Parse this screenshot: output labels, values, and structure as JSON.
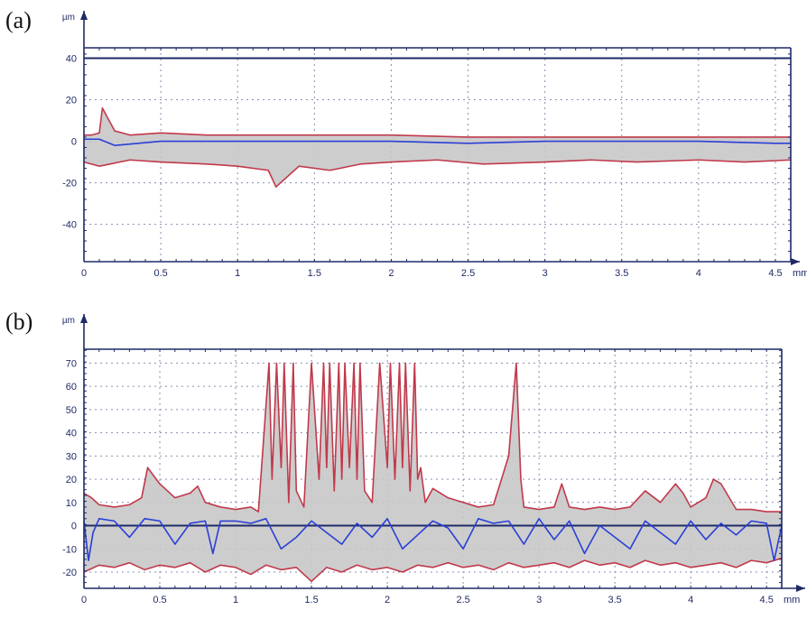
{
  "figure": {
    "panels": [
      {
        "label": "(a)",
        "y_unit": "µm",
        "x_unit": "mm"
      },
      {
        "label": "(b)",
        "y_unit": "µm",
        "x_unit": "mm"
      }
    ]
  },
  "chart_data": [
    {
      "type": "line",
      "panel": "(a)",
      "xlabel": "mm",
      "ylabel": "µm",
      "xlim": [
        0,
        4.6
      ],
      "ylim": [
        -58,
        45
      ],
      "x_ticks": [
        "0",
        "0.5",
        "1",
        "1.5",
        "2",
        "2.5",
        "3",
        "3.5",
        "4",
        "4.5"
      ],
      "x_tick_values": [
        0,
        0.5,
        1,
        1.5,
        2,
        2.5,
        3,
        3.5,
        4,
        4.5
      ],
      "y_ticks": [
        "40",
        "20",
        "0",
        "-20",
        "-40"
      ],
      "y_tick_values": [
        40,
        20,
        0,
        -20,
        -40
      ],
      "grid": true,
      "reference_line": {
        "y": 40
      },
      "colors": {
        "upper": "#c0394b",
        "lower": "#c0394b",
        "mean": "#2a3fd6",
        "band": "#c8c8c8",
        "axis": "#1f2a66",
        "grid": "#8a8fb0"
      },
      "series": [
        {
          "role": "upper",
          "x": [
            0,
            0.05,
            0.1,
            0.12,
            0.2,
            0.3,
            0.5,
            0.8,
            1,
            1.5,
            2,
            2.5,
            3,
            3.5,
            4,
            4.5,
            4.6
          ],
          "y": [
            3,
            3,
            4,
            16,
            5,
            3,
            4,
            3,
            3,
            3,
            3,
            2,
            2,
            2,
            2,
            2,
            2
          ]
        },
        {
          "role": "mean",
          "x": [
            0,
            0.1,
            0.2,
            0.5,
            1,
            1.5,
            2,
            2.5,
            3,
            3.5,
            4,
            4.5,
            4.6
          ],
          "y": [
            1,
            1,
            -2,
            0,
            0,
            0,
            0,
            -1,
            0,
            0,
            0,
            -1,
            -1
          ]
        },
        {
          "role": "lower",
          "x": [
            0,
            0.1,
            0.3,
            0.5,
            0.8,
            1,
            1.2,
            1.25,
            1.4,
            1.6,
            1.8,
            2,
            2.3,
            2.6,
            3,
            3.3,
            3.6,
            4,
            4.3,
            4.6
          ],
          "y": [
            -10,
            -12,
            -9,
            -10,
            -11,
            -12,
            -14,
            -22,
            -12,
            -14,
            -11,
            -10,
            -9,
            -11,
            -10,
            -9,
            -10,
            -9,
            -10,
            -9
          ]
        }
      ]
    },
    {
      "type": "line",
      "panel": "(b)",
      "xlabel": "mm",
      "ylabel": "µm",
      "xlim": [
        0,
        4.6
      ],
      "ylim": [
        -27,
        76
      ],
      "x_ticks": [
        "0",
        "0.5",
        "1",
        "1.5",
        "2",
        "2.5",
        "3",
        "3.5",
        "4",
        "4.5"
      ],
      "x_tick_values": [
        0,
        0.5,
        1,
        1.5,
        2,
        2.5,
        3,
        3.5,
        4,
        4.5
      ],
      "y_ticks": [
        "70",
        "60",
        "50",
        "40",
        "30",
        "20",
        "10",
        "0",
        "-10",
        "-20"
      ],
      "y_tick_values": [
        70,
        60,
        50,
        40,
        30,
        20,
        10,
        0,
        -10,
        -20
      ],
      "grid": true,
      "reference_line": {
        "y": 0
      },
      "colors": {
        "upper": "#c0394b",
        "lower": "#c0394b",
        "mean": "#2a3fd6",
        "band": "#c8c8c8",
        "axis": "#1f2a66",
        "grid": "#8a8fb0"
      },
      "series": [
        {
          "role": "upper",
          "x": [
            0,
            0.05,
            0.1,
            0.2,
            0.3,
            0.38,
            0.42,
            0.5,
            0.6,
            0.7,
            0.75,
            0.8,
            0.9,
            1,
            1.1,
            1.15,
            1.22,
            1.24,
            1.27,
            1.3,
            1.32,
            1.35,
            1.38,
            1.4,
            1.45,
            1.5,
            1.55,
            1.58,
            1.6,
            1.62,
            1.65,
            1.68,
            1.7,
            1.72,
            1.75,
            1.78,
            1.8,
            1.82,
            1.85,
            1.9,
            1.95,
            2,
            2.02,
            2.05,
            2.08,
            2.1,
            2.12,
            2.15,
            2.18,
            2.2,
            2.22,
            2.25,
            2.3,
            2.4,
            2.5,
            2.6,
            2.7,
            2.8,
            2.85,
            2.88,
            2.9,
            3,
            3.1,
            3.15,
            3.2,
            3.3,
            3.4,
            3.5,
            3.6,
            3.7,
            3.8,
            3.9,
            3.95,
            4,
            4.1,
            4.15,
            4.2,
            4.3,
            4.4,
            4.5,
            4.6
          ],
          "y": [
            14,
            12,
            9,
            8,
            9,
            12,
            25,
            18,
            12,
            14,
            17,
            10,
            8,
            7,
            8,
            6,
            70,
            20,
            70,
            25,
            70,
            10,
            70,
            15,
            8,
            70,
            20,
            70,
            25,
            70,
            15,
            70,
            20,
            70,
            25,
            70,
            20,
            70,
            15,
            10,
            70,
            25,
            70,
            20,
            70,
            25,
            70,
            15,
            70,
            20,
            25,
            10,
            16,
            12,
            10,
            8,
            9,
            30,
            70,
            20,
            8,
            7,
            8,
            18,
            8,
            7,
            8,
            7,
            8,
            15,
            10,
            18,
            14,
            8,
            12,
            20,
            18,
            7,
            7,
            6,
            6
          ]
        },
        {
          "role": "mean",
          "x": [
            0,
            0.03,
            0.06,
            0.1,
            0.2,
            0.3,
            0.4,
            0.5,
            0.6,
            0.7,
            0.8,
            0.85,
            0.9,
            1,
            1.1,
            1.2,
            1.3,
            1.4,
            1.5,
            1.6,
            1.7,
            1.8,
            1.9,
            2,
            2.1,
            2.2,
            2.3,
            2.4,
            2.5,
            2.6,
            2.7,
            2.8,
            2.9,
            3,
            3.1,
            3.2,
            3.3,
            3.4,
            3.5,
            3.6,
            3.7,
            3.8,
            3.9,
            4,
            4.1,
            4.2,
            4.3,
            4.4,
            4.5,
            4.55,
            4.6
          ],
          "y": [
            2,
            -15,
            -3,
            3,
            2,
            -5,
            3,
            2,
            -8,
            1,
            2,
            -12,
            2,
            2,
            1,
            3,
            -10,
            -5,
            2,
            -3,
            -8,
            1,
            -5,
            3,
            -10,
            -4,
            2,
            -1,
            -10,
            3,
            1,
            2,
            -8,
            3,
            -6,
            2,
            -12,
            0,
            -5,
            -10,
            2,
            -3,
            -8,
            2,
            -6,
            1,
            -4,
            2,
            1,
            -15,
            0
          ]
        },
        {
          "role": "lower",
          "x": [
            0,
            0.1,
            0.2,
            0.3,
            0.4,
            0.5,
            0.6,
            0.7,
            0.8,
            0.9,
            1,
            1.1,
            1.2,
            1.3,
            1.4,
            1.5,
            1.6,
            1.7,
            1.8,
            1.9,
            2,
            2.1,
            2.2,
            2.3,
            2.4,
            2.5,
            2.6,
            2.7,
            2.8,
            2.9,
            3,
            3.1,
            3.2,
            3.3,
            3.4,
            3.5,
            3.6,
            3.7,
            3.8,
            3.9,
            4,
            4.1,
            4.2,
            4.3,
            4.4,
            4.5,
            4.6
          ],
          "y": [
            -20,
            -17,
            -18,
            -16,
            -19,
            -17,
            -18,
            -16,
            -20,
            -17,
            -18,
            -21,
            -17,
            -19,
            -18,
            -24,
            -18,
            -20,
            -17,
            -19,
            -18,
            -20,
            -17,
            -18,
            -16,
            -18,
            -17,
            -19,
            -16,
            -18,
            -17,
            -16,
            -18,
            -15,
            -17,
            -16,
            -18,
            -15,
            -17,
            -16,
            -18,
            -17,
            -16,
            -18,
            -15,
            -16,
            -14
          ]
        }
      ]
    }
  ]
}
